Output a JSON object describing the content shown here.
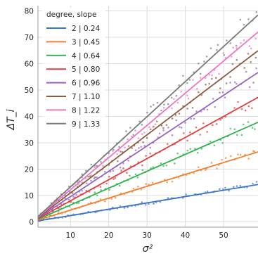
{
  "chart_data": {
    "type": "scatter",
    "title": "",
    "xlabel": "σ²",
    "ylabel": "ΔT_i",
    "xlim": [
      1.5,
      59
    ],
    "ylim": [
      -2,
      82
    ],
    "xticks": [
      10,
      20,
      30,
      40,
      50
    ],
    "yticks": [
      0,
      10,
      20,
      30,
      40,
      50,
      60,
      70,
      80
    ],
    "grid": true,
    "legend": {
      "title": "degree, slope",
      "placement": "top-left"
    },
    "series": [
      {
        "name": "2 | 0.24",
        "degree": 2,
        "slope": 0.24,
        "color": "#3b75c4"
      },
      {
        "name": "3 | 0.45",
        "degree": 3,
        "slope": 0.45,
        "color": "#f07f2f"
      },
      {
        "name": "4 | 0.64",
        "degree": 4,
        "slope": 0.64,
        "color": "#2fb24f"
      },
      {
        "name": "5 | 0.80",
        "degree": 5,
        "slope": 0.8,
        "color": "#e23b3b"
      },
      {
        "name": "6 | 0.96",
        "degree": 6,
        "slope": 0.96,
        "color": "#9462c2"
      },
      {
        "name": "7 | 1.10",
        "degree": 7,
        "slope": 1.1,
        "color": "#8c5a3f"
      },
      {
        "name": "8 | 1.22",
        "degree": 8,
        "slope": 1.22,
        "color": "#e878c3"
      },
      {
        "name": "9 | 1.33",
        "degree": 9,
        "slope": 1.33,
        "color": "#7a7a7a"
      }
    ],
    "fit_x_range": [
      1.5,
      59
    ],
    "points_per_series": 60
  }
}
